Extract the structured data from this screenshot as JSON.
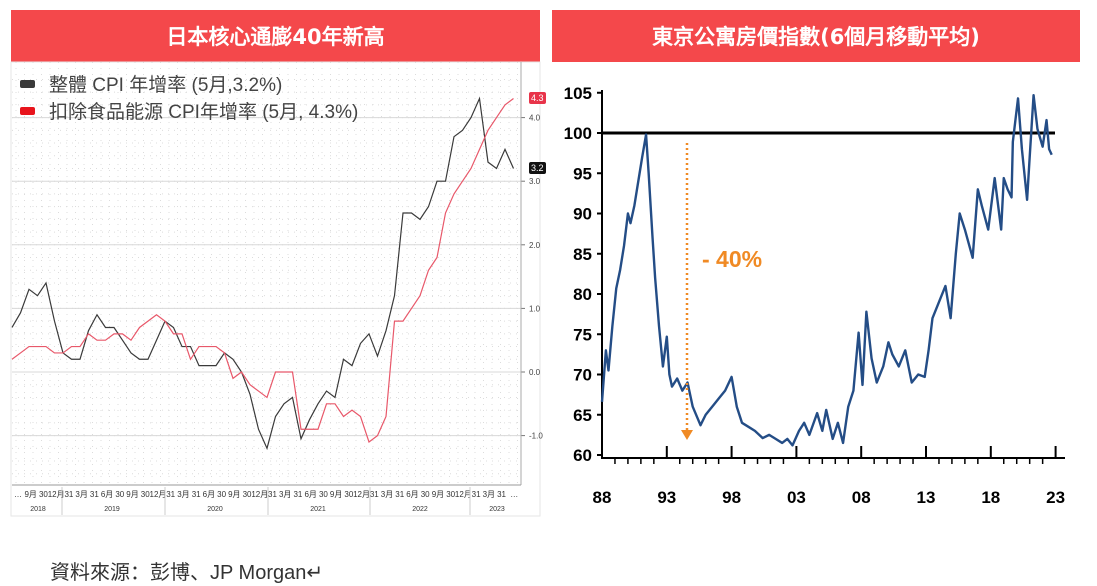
{
  "source_note": "資料來源：彭博、JP Morgan↵",
  "chart_data": [
    {
      "type": "line",
      "title": "日本核心通膨40年新高",
      "ylim": [
        -1.4,
        4.6
      ],
      "y_ticks": [
        "-1.0",
        "0.0",
        "1.0",
        "2.0",
        "3.0",
        "4.0"
      ],
      "y_tick_values": [
        -1,
        0,
        1,
        2,
        3,
        4
      ],
      "x_start": "2018-07",
      "x_end": "2023-05",
      "x_tick_labels": [
        "…",
        "9月",
        "30",
        "12月",
        "31",
        "3月",
        "31",
        "6月",
        "30",
        "9月",
        "30",
        "12月",
        "31",
        "3月",
        "31",
        "6月",
        "30",
        "9月",
        "30",
        "12月",
        "31",
        "3月",
        "31",
        "6月",
        "30",
        "9月",
        "30",
        "12月",
        "31",
        "3月",
        "31",
        "6月",
        "30",
        "9月",
        "30",
        "12月",
        "31",
        "3月",
        "31",
        "…"
      ],
      "year_labels": [
        "2018",
        "2019",
        "2020",
        "2021",
        "2022",
        "2023"
      ],
      "grid": true,
      "legend_position": "top-left",
      "series": [
        {
          "name": "整體 CPI 年增率 (5月,3.2%)",
          "color": "#3a3a3a",
          "last_label": "3.2",
          "values": [
            0.7,
            0.93,
            1.3,
            1.2,
            1.4,
            0.8,
            0.3,
            0.2,
            0.2,
            0.65,
            0.9,
            0.7,
            0.7,
            0.5,
            0.3,
            0.2,
            0.2,
            0.5,
            0.8,
            0.7,
            0.4,
            0.4,
            0.1,
            0.1,
            0.1,
            0.3,
            0.2,
            0.0,
            -0.35,
            -0.9,
            -1.2,
            -0.7,
            -0.5,
            -0.4,
            -1.05,
            -0.75,
            -0.5,
            -0.3,
            -0.4,
            0.2,
            0.1,
            0.45,
            0.6,
            0.25,
            0.65,
            1.2,
            2.5,
            2.5,
            2.4,
            2.6,
            3.0,
            3.0,
            3.7,
            3.8,
            4.0,
            4.3,
            3.3,
            3.2,
            3.5,
            3.2
          ]
        },
        {
          "name": "扣除食品能源 CPI年增率 (5月, 4.3%)",
          "color": "#e8586a",
          "last_label": "4.3",
          "values": [
            0.2,
            0.3,
            0.4,
            0.4,
            0.4,
            0.3,
            0.3,
            0.4,
            0.4,
            0.6,
            0.5,
            0.5,
            0.6,
            0.6,
            0.5,
            0.7,
            0.8,
            0.9,
            0.8,
            0.6,
            0.6,
            0.2,
            0.4,
            0.4,
            0.4,
            0.3,
            -0.1,
            0.0,
            -0.2,
            -0.3,
            -0.4,
            0.0,
            0.0,
            0.0,
            -0.9,
            -0.9,
            -0.9,
            -0.5,
            -0.5,
            -0.7,
            -0.6,
            -0.7,
            -1.1,
            -1.0,
            -0.7,
            0.8,
            0.8,
            1.0,
            1.2,
            1.6,
            1.8,
            2.5,
            2.8,
            3.0,
            3.2,
            3.5,
            3.8,
            4.0,
            4.2,
            4.3
          ]
        }
      ]
    },
    {
      "type": "line",
      "title": "東京公寓房價指數(6個月移動平均)",
      "ylim": [
        60,
        105
      ],
      "y_ticks": [
        "60",
        "65",
        "70",
        "75",
        "80",
        "85",
        "90",
        "95",
        "100",
        "105"
      ],
      "xlim": [
        1988,
        2023
      ],
      "x_ticks": [
        "88",
        "93",
        "98",
        "03",
        "08",
        "13",
        "18",
        "23"
      ],
      "reference_line": 100,
      "annotation": "- 40%",
      "annotation_color": "#f08a24",
      "line_color": "#244d86",
      "x": [
        1988.0,
        1988.3,
        1988.5,
        1988.8,
        1989.1,
        1989.4,
        1989.7,
        1990.0,
        1990.2,
        1990.5,
        1990.7,
        1990.9,
        1991.1,
        1991.4,
        1991.6,
        1991.9,
        1992.1,
        1992.4,
        1992.7,
        1993.0,
        1993.2,
        1993.4,
        1993.8,
        1994.2,
        1994.6,
        1995.0,
        1995.6,
        1996.0,
        1996.6,
        1997.0,
        1997.5,
        1998.0,
        1998.4,
        1998.8,
        1999.3,
        1999.8,
        2000.4,
        2000.9,
        2001.4,
        2001.9,
        2002.3,
        2002.7,
        2003.2,
        2003.6,
        2004.0,
        2004.6,
        2005.0,
        2005.3,
        2005.8,
        2006.2,
        2006.6,
        2007.0,
        2007.4,
        2007.8,
        2008.1,
        2008.4,
        2008.8,
        2009.2,
        2009.7,
        2010.1,
        2010.4,
        2010.9,
        2011.4,
        2011.9,
        2012.4,
        2012.9,
        2013.2,
        2013.5,
        2014.0,
        2014.5,
        2014.9,
        2015.3,
        2015.6,
        2016.0,
        2016.6,
        2017.0,
        2017.3,
        2017.8,
        2018.3,
        2018.8,
        2019.0,
        2019.3,
        2019.6,
        2019.7,
        2020.1,
        2020.4,
        2020.8,
        2021.0,
        2021.3,
        2021.6,
        2022.0,
        2022.3,
        2022.5,
        2022.7
      ],
      "values": [
        66.6,
        73,
        70.5,
        76,
        80.7,
        83,
        86,
        90,
        88.8,
        91,
        93,
        95,
        97,
        99.8,
        95,
        87,
        82,
        76,
        71,
        74.7,
        70,
        68.5,
        69.5,
        68,
        69,
        66,
        63.7,
        65,
        66.2,
        67,
        68,
        69.7,
        66,
        64,
        63.5,
        63,
        62.1,
        62.5,
        62,
        61.5,
        62,
        61.2,
        63,
        64,
        62.5,
        65.2,
        63,
        65.6,
        62,
        64,
        61.5,
        66,
        68,
        75.2,
        68.7,
        77.8,
        72,
        69,
        71,
        74,
        72.5,
        71,
        73,
        69,
        70,
        69.7,
        73,
        77,
        79,
        81,
        77,
        85,
        90,
        88,
        84.5,
        93,
        91,
        88,
        94.4,
        88,
        94.4,
        93,
        92,
        98.9,
        104.3,
        98,
        91.7,
        97,
        104.7,
        100.5,
        98.3,
        101.6,
        98,
        97.3
      ]
    }
  ]
}
